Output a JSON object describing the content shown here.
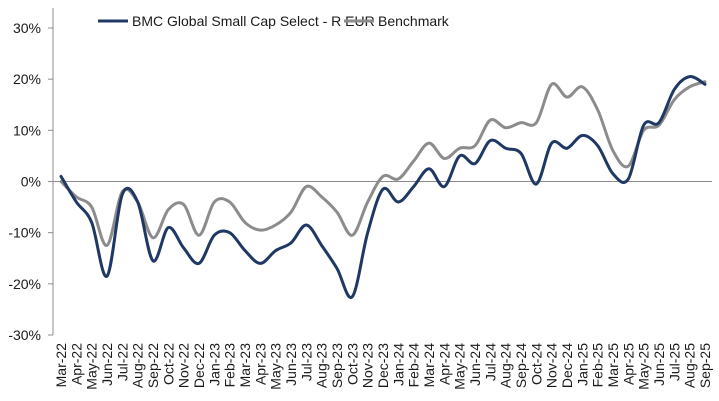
{
  "chart_data": {
    "type": "line",
    "title": "",
    "xlabel": "",
    "ylabel": "",
    "ylim": [
      -30,
      30
    ],
    "yticks": [
      30,
      20,
      10,
      0,
      -10,
      -20,
      -30
    ],
    "ytick_labels": [
      "30%",
      "20%",
      "10%",
      "0%",
      "-10%",
      "-20%",
      "-30%"
    ],
    "grid": false,
    "legend_position": "top-center",
    "x": [
      "Mar-22",
      "Apr-22",
      "May-22",
      "Jun-22",
      "Jul-22",
      "Aug-22",
      "Sep-22",
      "Oct-22",
      "Nov-22",
      "Dec-22",
      "Jan-23",
      "Feb-23",
      "Mar-23",
      "Apr-23",
      "May-23",
      "Jun-23",
      "Jul-23",
      "Aug-23",
      "Sep-23",
      "Oct-23",
      "Nov-23",
      "Dec-23",
      "Jan-24",
      "Feb-24",
      "Mar-24",
      "Apr-24",
      "May-24",
      "Jun-24",
      "Jul-24",
      "Aug-24",
      "Sep-24",
      "Oct-24",
      "Nov-24",
      "Dec-24",
      "Jan-25",
      "Feb-25",
      "Mar-25",
      "Apr-25",
      "May-25",
      "Jun-25",
      "Jul-25",
      "Aug-25",
      "Sep-25"
    ],
    "series": [
      {
        "name": "BMC Global Small Cap Select - R EUR",
        "color": "#1f3864",
        "values": [
          1.0,
          -4,
          -8,
          -18.5,
          -2.5,
          -4,
          -15.5,
          -9,
          -13,
          -16,
          -10.5,
          -10,
          -13.5,
          -16,
          -13.5,
          -12,
          -8.5,
          -12.5,
          -17,
          -22.5,
          -10,
          -1.5,
          -4,
          -1,
          2.5,
          -1,
          5,
          3.5,
          8,
          6.5,
          5.5,
          -0.5,
          7.5,
          6.5,
          9,
          7,
          1.5,
          0.5,
          11,
          11.5,
          18,
          20.5,
          19
        ]
      },
      {
        "name": "Benchmark",
        "color": "#8c8c8c",
        "values": [
          0,
          -3,
          -5,
          -12.5,
          -2,
          -4,
          -11,
          -5.5,
          -4.5,
          -10.5,
          -4,
          -4,
          -8,
          -9.5,
          -8.5,
          -6,
          -1,
          -3,
          -6,
          -10.5,
          -4,
          1,
          0.5,
          4,
          7.5,
          4.5,
          6.5,
          7,
          12,
          10.5,
          11.5,
          11.5,
          19,
          16.5,
          18.5,
          14,
          6,
          3,
          10,
          11,
          16,
          18.5,
          19.5
        ]
      }
    ]
  }
}
